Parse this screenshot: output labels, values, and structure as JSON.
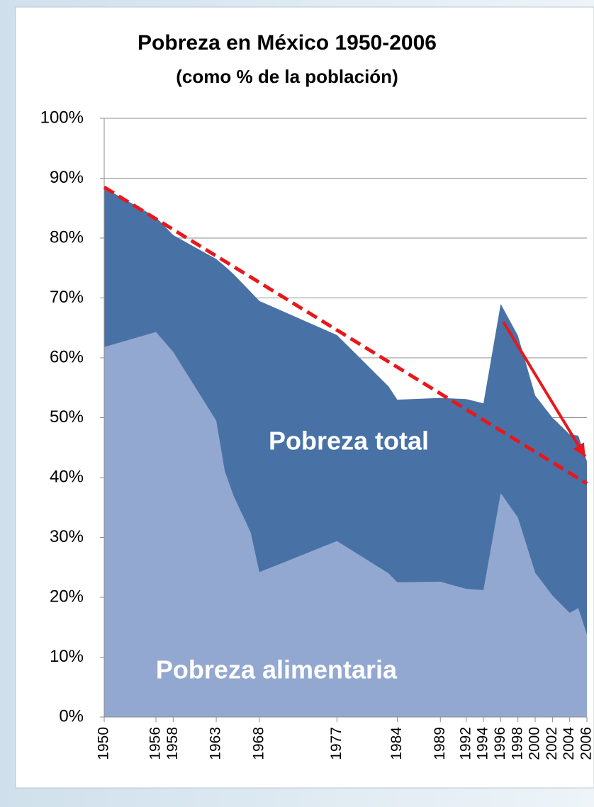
{
  "chart_data": {
    "type": "area",
    "title": "Pobreza en México 1950-2006",
    "subtitle": "(como % de la población)",
    "x": [
      1950,
      1956,
      1958,
      1963,
      1964,
      1965,
      1967,
      1968,
      1977,
      1983,
      1984,
      1989,
      1992,
      1994,
      1996,
      1998,
      2000,
      2002,
      2004,
      2005,
      2006
    ],
    "series": [
      {
        "name": "Pobreza total",
        "color": "#4872a6",
        "values": [
          88.4,
          83.5,
          80.5,
          76.5,
          75.3,
          74,
          71,
          69.5,
          63.8,
          55.2,
          53,
          53.3,
          53.1,
          52.4,
          69,
          63.7,
          53.7,
          50,
          47.2,
          47,
          42.7
        ]
      },
      {
        "name": "Pobreza alimentaria",
        "color": "#93a8d0",
        "values": [
          61.8,
          64.3,
          61,
          49.5,
          41,
          37,
          30.8,
          24.2,
          29.4,
          24,
          22.5,
          22.6,
          21.4,
          21.2,
          37.4,
          33.3,
          24.1,
          20.3,
          17.4,
          18.2,
          13.8
        ]
      }
    ],
    "trend": {
      "x": [
        1950,
        2006
      ],
      "y": [
        88.5,
        39
      ],
      "color": "#e8171b"
    },
    "arrow": {
      "x": [
        1996.3,
        2005.8
      ],
      "y": [
        66,
        43.5
      ],
      "color": "#e8171b"
    },
    "xlim": [
      1950,
      2006
    ],
    "xticks": [
      1950,
      1956,
      1958,
      1963,
      1968,
      1977,
      1984,
      1989,
      1992,
      1994,
      1996,
      1998,
      2000,
      2002,
      2004,
      2006
    ],
    "ylim": [
      0,
      100
    ],
    "yticks": [
      {
        "value": 0,
        "label": "0%"
      },
      {
        "value": 10,
        "label": "10%"
      },
      {
        "value": 20,
        "label": "20%"
      },
      {
        "value": 30,
        "label": "30%"
      },
      {
        "value": 40,
        "label": "40%"
      },
      {
        "value": 50,
        "label": "50%"
      },
      {
        "value": 60,
        "label": "60%"
      },
      {
        "value": 70,
        "label": "70%"
      },
      {
        "value": 80,
        "label": "80%"
      },
      {
        "value": 90,
        "label": "90%"
      },
      {
        "value": 100,
        "label": "100%"
      }
    ],
    "grid": true
  }
}
